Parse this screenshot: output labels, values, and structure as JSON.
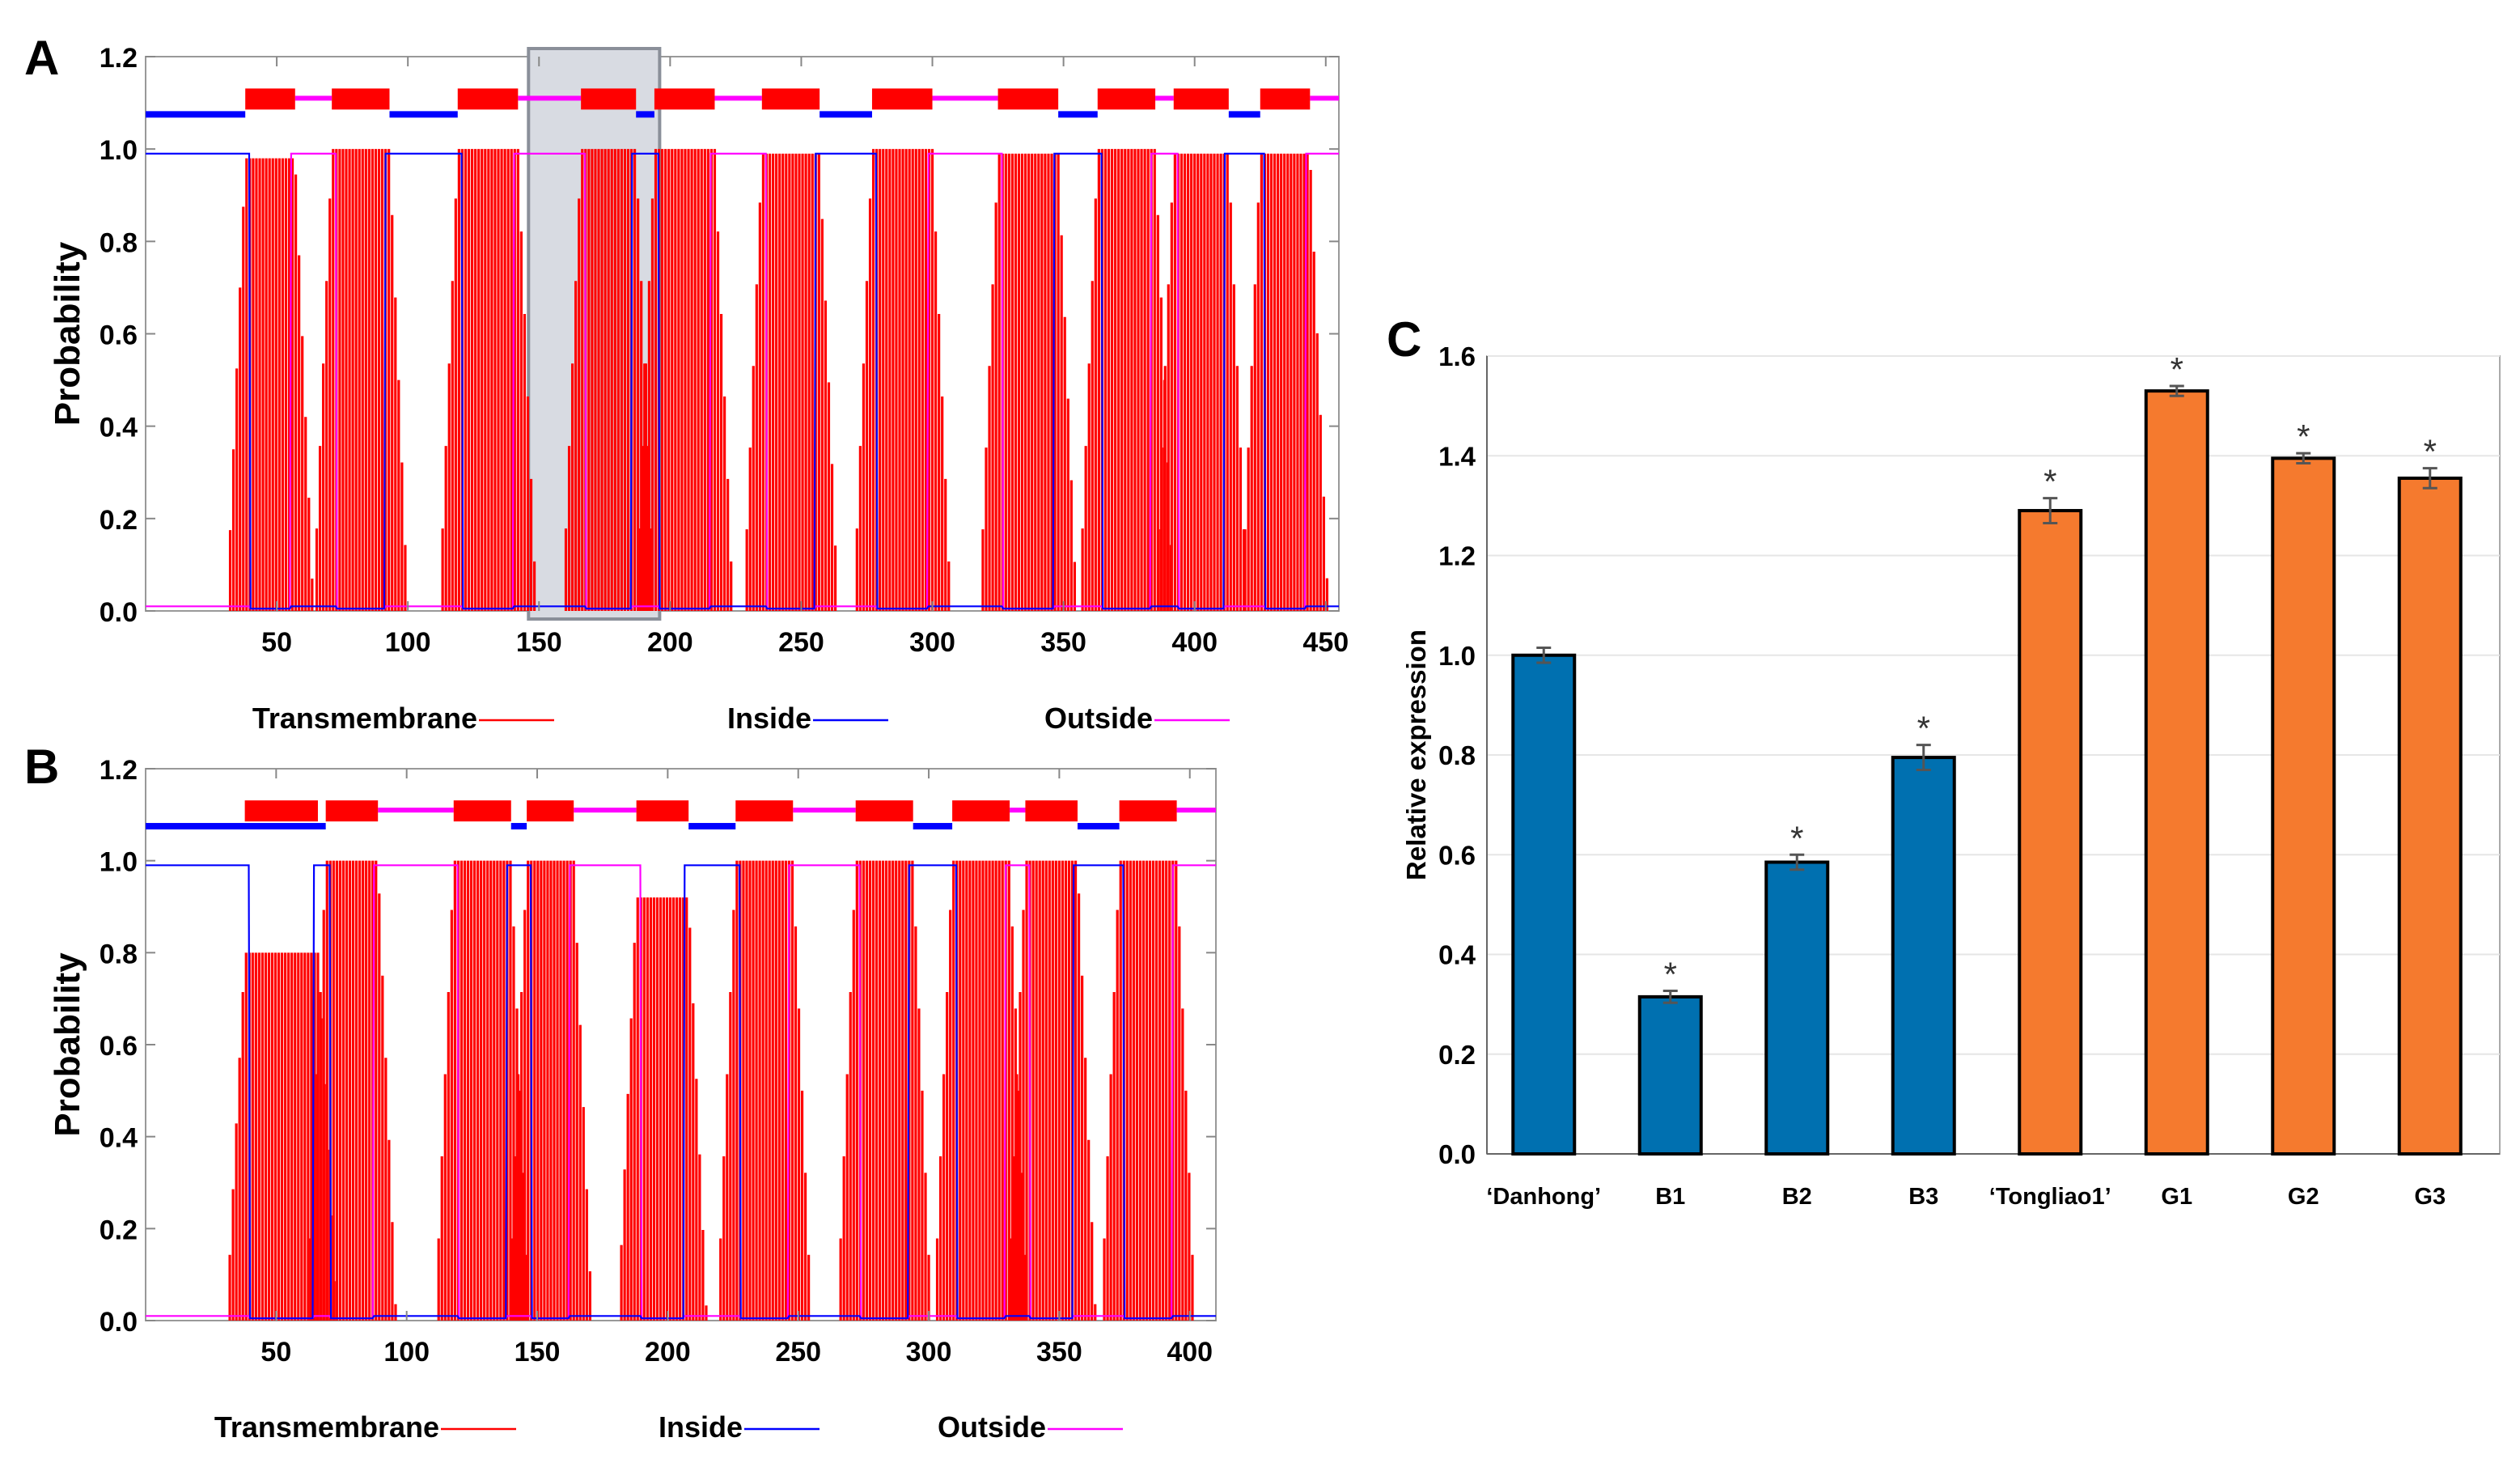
{
  "chart_data": [
    {
      "panel": "A",
      "type": "line",
      "title": "",
      "ylabel": "Probability",
      "xlabel": "",
      "xlim": [
        0,
        455
      ],
      "ylim": [
        0,
        1.2
      ],
      "yticks": [
        "0.0",
        "0.2",
        "0.4",
        "0.6",
        "0.8",
        "1.0",
        "1.2"
      ],
      "xticks": [
        "50",
        "100",
        "150",
        "200",
        "250",
        "300",
        "350",
        "400",
        "450"
      ],
      "legend": [
        "Transmembrane",
        "Inside",
        "Outside"
      ],
      "highlight_region": [
        146,
        196
      ],
      "helices": [
        {
          "start": 38,
          "end": 57,
          "peak": 0.98
        },
        {
          "start": 71,
          "end": 93,
          "peak": 1.0
        },
        {
          "start": 119,
          "end": 142,
          "peak": 1.0
        },
        {
          "start": 166,
          "end": 187,
          "peak": 1.0
        },
        {
          "start": 194,
          "end": 217,
          "peak": 1.0
        },
        {
          "start": 235,
          "end": 257,
          "peak": 0.99
        },
        {
          "start": 277,
          "end": 300,
          "peak": 1.0
        },
        {
          "start": 325,
          "end": 348,
          "peak": 0.99
        },
        {
          "start": 363,
          "end": 385,
          "peak": 1.0
        },
        {
          "start": 392,
          "end": 413,
          "peak": 0.99
        },
        {
          "start": 425,
          "end": 444,
          "peak": 0.99
        }
      ],
      "topology": [
        {
          "start": 0,
          "end": 38,
          "side": "inside"
        },
        {
          "start": 57,
          "end": 71,
          "side": "outside"
        },
        {
          "start": 93,
          "end": 119,
          "side": "inside"
        },
        {
          "start": 142,
          "end": 166,
          "side": "outside"
        },
        {
          "start": 187,
          "end": 194,
          "side": "inside"
        },
        {
          "start": 217,
          "end": 235,
          "side": "outside"
        },
        {
          "start": 257,
          "end": 277,
          "side": "inside"
        },
        {
          "start": 300,
          "end": 325,
          "side": "outside"
        },
        {
          "start": 348,
          "end": 363,
          "side": "inside"
        },
        {
          "start": 385,
          "end": 392,
          "side": "outside"
        },
        {
          "start": 413,
          "end": 425,
          "side": "inside"
        },
        {
          "start": 444,
          "end": 455,
          "side": "outside"
        }
      ]
    },
    {
      "panel": "B",
      "type": "line",
      "title": "",
      "ylabel": "Probability",
      "xlabel": "",
      "xlim": [
        0,
        410
      ],
      "ylim": [
        0,
        1.2
      ],
      "yticks": [
        "0.0",
        "0.2",
        "0.4",
        "0.6",
        "0.8",
        "1.0",
        "1.2"
      ],
      "xticks": [
        "50",
        "100",
        "150",
        "200",
        "250",
        "300",
        "350",
        "400"
      ],
      "legend": [
        "Transmembrane",
        "Inside",
        "Outside"
      ],
      "helices": [
        {
          "start": 38,
          "end": 66,
          "peak": 0.8
        },
        {
          "start": 69,
          "end": 89,
          "peak": 1.0
        },
        {
          "start": 118,
          "end": 140,
          "peak": 1.0
        },
        {
          "start": 146,
          "end": 164,
          "peak": 1.0
        },
        {
          "start": 188,
          "end": 208,
          "peak": 0.92
        },
        {
          "start": 226,
          "end": 248,
          "peak": 1.0
        },
        {
          "start": 272,
          "end": 294,
          "peak": 1.0
        },
        {
          "start": 309,
          "end": 331,
          "peak": 1.0
        },
        {
          "start": 337,
          "end": 357,
          "peak": 1.0
        },
        {
          "start": 373,
          "end": 395,
          "peak": 1.0
        }
      ],
      "topology": [
        {
          "start": 0,
          "end": 69,
          "side": "inside"
        },
        {
          "start": 89,
          "end": 118,
          "side": "outside"
        },
        {
          "start": 140,
          "end": 146,
          "side": "inside"
        },
        {
          "start": 164,
          "end": 188,
          "side": "outside"
        },
        {
          "start": 208,
          "end": 226,
          "side": "inside"
        },
        {
          "start": 248,
          "end": 272,
          "side": "outside"
        },
        {
          "start": 294,
          "end": 309,
          "side": "inside"
        },
        {
          "start": 331,
          "end": 337,
          "side": "outside"
        },
        {
          "start": 357,
          "end": 373,
          "side": "inside"
        },
        {
          "start": 395,
          "end": 410,
          "side": "outside"
        }
      ]
    },
    {
      "panel": "C",
      "type": "bar",
      "title": "",
      "xlabel": "",
      "ylabel": "Relative expression",
      "ylim": [
        0,
        1.6
      ],
      "yticks": [
        "0.0",
        "0.2",
        "0.4",
        "0.6",
        "0.8",
        "1.0",
        "1.2",
        "1.4",
        "1.6"
      ],
      "categories": [
        "‘Danhong’",
        "B1",
        "B2",
        "B3",
        "‘Tongliao1’",
        "G1",
        "G2",
        "G3"
      ],
      "values": [
        1.0,
        0.315,
        0.585,
        0.795,
        1.29,
        1.53,
        1.395,
        1.355
      ],
      "errors": [
        0.015,
        0.012,
        0.015,
        0.025,
        0.025,
        0.01,
        0.01,
        0.02
      ],
      "significance": [
        "",
        "*",
        "*",
        "*",
        "*",
        "*",
        "*",
        "*"
      ],
      "bar_colors": [
        "#0070b0",
        "#0070b0",
        "#0070b0",
        "#0070b0",
        "#f57a2e",
        "#f57a2e",
        "#f57a2e",
        "#f57a2e"
      ]
    }
  ],
  "labels": {
    "panel_a": "A",
    "panel_b": "B",
    "panel_c": "C"
  },
  "colors": {
    "transmembrane": "#ff0000",
    "inside": "#0000ff",
    "outside": "#ff00ff",
    "highlight": "#d8dbe2"
  }
}
